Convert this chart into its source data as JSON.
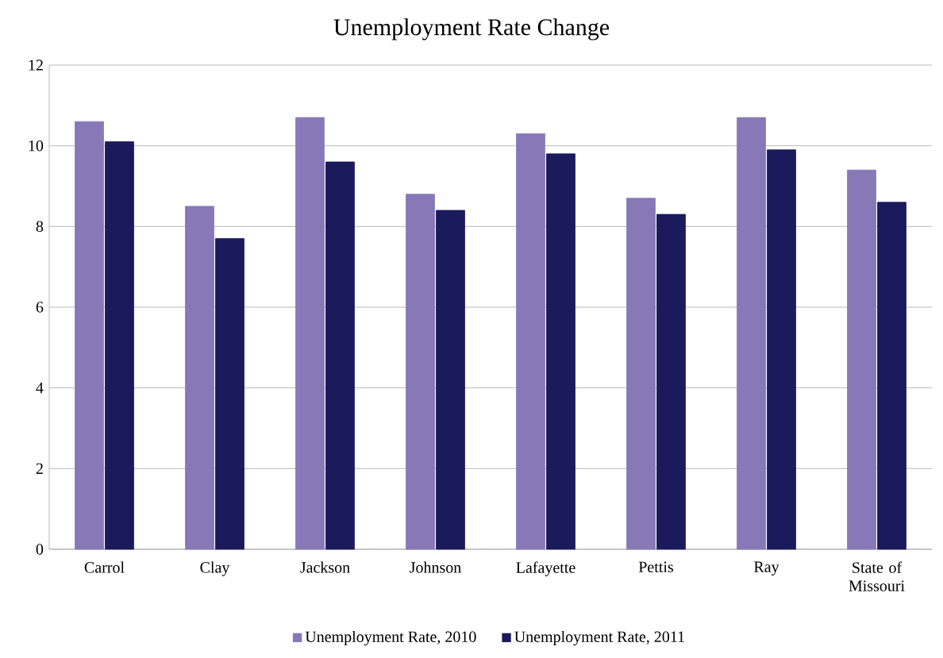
{
  "chart_data": {
    "type": "bar",
    "title": "Unemployment Rate Change",
    "categories": [
      "Carrol",
      "Clay",
      "Jackson",
      "Johnson",
      "Lafayette",
      "Pettis",
      "Ray",
      "State of Missouri"
    ],
    "series": [
      {
        "name": "Unemployment Rate, 2010",
        "color": "#8878b8",
        "values": [
          10.6,
          8.5,
          10.7,
          8.8,
          10.3,
          8.7,
          10.7,
          9.4
        ]
      },
      {
        "name": "Unemployment Rate, 2011",
        "color": "#1b1a5c",
        "values": [
          10.1,
          7.7,
          9.6,
          8.4,
          9.8,
          8.3,
          9.9,
          8.6
        ]
      }
    ],
    "ylim": [
      0,
      12
    ],
    "yticks": [
      0,
      2,
      4,
      6,
      8,
      10,
      12
    ],
    "grid": "y",
    "legend": "bottom"
  }
}
